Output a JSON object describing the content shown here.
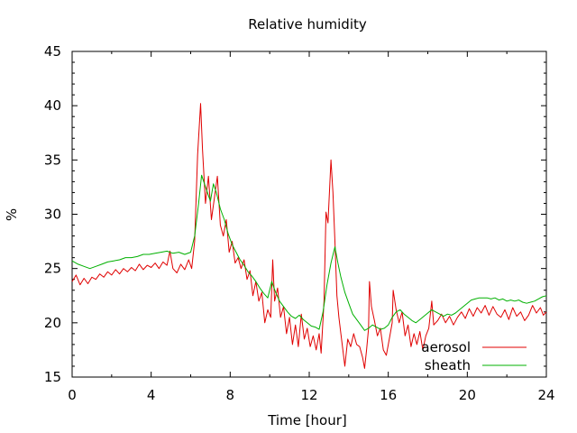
{
  "chart_data": {
    "type": "line",
    "title": "Relative humidity",
    "xlabel": "Time [hour]",
    "ylabel": "%",
    "xlim": [
      0,
      24
    ],
    "ylim": [
      15,
      45
    ],
    "xticks": [
      0,
      4,
      8,
      12,
      16,
      20,
      24
    ],
    "yticks": [
      15,
      20,
      25,
      30,
      35,
      40,
      45
    ],
    "grid": false,
    "legend_position": "bottom-right",
    "series": [
      {
        "name": "aerosol",
        "color": "#e00000",
        "points": [
          [
            0.0,
            23.8
          ],
          [
            0.2,
            24.4
          ],
          [
            0.4,
            23.5
          ],
          [
            0.6,
            24.1
          ],
          [
            0.8,
            23.6
          ],
          [
            1.0,
            24.2
          ],
          [
            1.2,
            24.0
          ],
          [
            1.4,
            24.5
          ],
          [
            1.6,
            24.2
          ],
          [
            1.8,
            24.7
          ],
          [
            2.0,
            24.4
          ],
          [
            2.2,
            24.9
          ],
          [
            2.4,
            24.5
          ],
          [
            2.6,
            25.0
          ],
          [
            2.8,
            24.7
          ],
          [
            3.0,
            25.1
          ],
          [
            3.2,
            24.8
          ],
          [
            3.4,
            25.4
          ],
          [
            3.6,
            24.9
          ],
          [
            3.8,
            25.3
          ],
          [
            4.0,
            25.1
          ],
          [
            4.2,
            25.5
          ],
          [
            4.4,
            25.0
          ],
          [
            4.6,
            25.6
          ],
          [
            4.8,
            25.3
          ],
          [
            4.95,
            26.6
          ],
          [
            5.1,
            25.0
          ],
          [
            5.3,
            24.6
          ],
          [
            5.5,
            25.4
          ],
          [
            5.7,
            24.9
          ],
          [
            5.9,
            25.8
          ],
          [
            6.05,
            25.0
          ],
          [
            6.2,
            27.5
          ],
          [
            6.35,
            35.5
          ],
          [
            6.5,
            40.2
          ],
          [
            6.6,
            36.0
          ],
          [
            6.75,
            31.0
          ],
          [
            6.9,
            33.5
          ],
          [
            7.05,
            29.5
          ],
          [
            7.2,
            31.5
          ],
          [
            7.35,
            33.5
          ],
          [
            7.5,
            29.0
          ],
          [
            7.65,
            28.0
          ],
          [
            7.8,
            29.5
          ],
          [
            7.95,
            26.5
          ],
          [
            8.1,
            27.5
          ],
          [
            8.25,
            25.5
          ],
          [
            8.4,
            26.0
          ],
          [
            8.55,
            25.0
          ],
          [
            8.7,
            25.8
          ],
          [
            8.85,
            24.0
          ],
          [
            9.0,
            24.8
          ],
          [
            9.15,
            22.5
          ],
          [
            9.3,
            23.8
          ],
          [
            9.45,
            22.0
          ],
          [
            9.6,
            22.8
          ],
          [
            9.75,
            20.0
          ],
          [
            9.9,
            21.2
          ],
          [
            10.05,
            20.5
          ],
          [
            10.15,
            25.8
          ],
          [
            10.25,
            22.0
          ],
          [
            10.4,
            23.2
          ],
          [
            10.55,
            20.5
          ],
          [
            10.7,
            21.5
          ],
          [
            10.85,
            19.0
          ],
          [
            11.0,
            20.5
          ],
          [
            11.15,
            18.0
          ],
          [
            11.3,
            19.8
          ],
          [
            11.45,
            17.8
          ],
          [
            11.6,
            20.8
          ],
          [
            11.75,
            18.5
          ],
          [
            11.9,
            19.5
          ],
          [
            12.05,
            17.8
          ],
          [
            12.2,
            18.8
          ],
          [
            12.35,
            17.5
          ],
          [
            12.5,
            19.0
          ],
          [
            12.6,
            17.2
          ],
          [
            12.75,
            22.0
          ],
          [
            12.85,
            30.2
          ],
          [
            12.95,
            29.2
          ],
          [
            13.1,
            35.0
          ],
          [
            13.2,
            32.0
          ],
          [
            13.3,
            27.5
          ],
          [
            13.4,
            22.5
          ],
          [
            13.5,
            20.5
          ],
          [
            13.6,
            19.0
          ],
          [
            13.7,
            17.5
          ],
          [
            13.8,
            16.0
          ],
          [
            13.95,
            18.5
          ],
          [
            14.1,
            17.8
          ],
          [
            14.25,
            19.0
          ],
          [
            14.4,
            18.0
          ],
          [
            14.55,
            17.8
          ],
          [
            14.7,
            16.8
          ],
          [
            14.8,
            15.8
          ],
          [
            14.9,
            17.5
          ],
          [
            15.0,
            19.5
          ],
          [
            15.05,
            23.8
          ],
          [
            15.15,
            21.5
          ],
          [
            15.3,
            20.2
          ],
          [
            15.45,
            18.8
          ],
          [
            15.6,
            19.5
          ],
          [
            15.75,
            17.5
          ],
          [
            15.9,
            17.0
          ],
          [
            16.05,
            18.5
          ],
          [
            16.2,
            20.0
          ],
          [
            16.25,
            23.0
          ],
          [
            16.4,
            21.2
          ],
          [
            16.55,
            20.0
          ],
          [
            16.7,
            21.0
          ],
          [
            16.85,
            18.8
          ],
          [
            17.0,
            19.8
          ],
          [
            17.15,
            17.8
          ],
          [
            17.3,
            19.0
          ],
          [
            17.45,
            18.0
          ],
          [
            17.6,
            19.2
          ],
          [
            17.75,
            17.5
          ],
          [
            17.9,
            18.8
          ],
          [
            18.05,
            19.5
          ],
          [
            18.2,
            22.0
          ],
          [
            18.3,
            19.8
          ],
          [
            18.5,
            20.2
          ],
          [
            18.7,
            20.8
          ],
          [
            18.9,
            20.0
          ],
          [
            19.1,
            20.6
          ],
          [
            19.3,
            19.8
          ],
          [
            19.5,
            20.5
          ],
          [
            19.7,
            21.0
          ],
          [
            19.9,
            20.4
          ],
          [
            20.1,
            21.3
          ],
          [
            20.3,
            20.6
          ],
          [
            20.5,
            21.4
          ],
          [
            20.7,
            20.9
          ],
          [
            20.9,
            21.6
          ],
          [
            21.1,
            20.7
          ],
          [
            21.3,
            21.5
          ],
          [
            21.5,
            20.8
          ],
          [
            21.7,
            20.5
          ],
          [
            21.9,
            21.2
          ],
          [
            22.1,
            20.3
          ],
          [
            22.3,
            21.4
          ],
          [
            22.5,
            20.6
          ],
          [
            22.7,
            21.0
          ],
          [
            22.9,
            20.2
          ],
          [
            23.1,
            20.7
          ],
          [
            23.3,
            21.6
          ],
          [
            23.5,
            20.9
          ],
          [
            23.7,
            21.4
          ],
          [
            23.85,
            20.7
          ],
          [
            24.0,
            21.0
          ]
        ]
      },
      {
        "name": "sheath",
        "color": "#00b000",
        "points": [
          [
            0.0,
            25.7
          ],
          [
            0.3,
            25.4
          ],
          [
            0.6,
            25.2
          ],
          [
            0.9,
            25.0
          ],
          [
            1.2,
            25.2
          ],
          [
            1.5,
            25.4
          ],
          [
            1.8,
            25.6
          ],
          [
            2.1,
            25.7
          ],
          [
            2.4,
            25.8
          ],
          [
            2.7,
            26.0
          ],
          [
            3.0,
            26.0
          ],
          [
            3.3,
            26.1
          ],
          [
            3.6,
            26.3
          ],
          [
            3.9,
            26.3
          ],
          [
            4.2,
            26.4
          ],
          [
            4.5,
            26.5
          ],
          [
            4.8,
            26.6
          ],
          [
            5.1,
            26.4
          ],
          [
            5.4,
            26.5
          ],
          [
            5.7,
            26.3
          ],
          [
            6.0,
            26.5
          ],
          [
            6.2,
            28.0
          ],
          [
            6.4,
            31.0
          ],
          [
            6.55,
            33.6
          ],
          [
            6.7,
            32.8
          ],
          [
            6.85,
            32.0
          ],
          [
            7.0,
            31.2
          ],
          [
            7.15,
            32.8
          ],
          [
            7.3,
            32.0
          ],
          [
            7.5,
            30.5
          ],
          [
            7.7,
            29.5
          ],
          [
            7.9,
            28.2
          ],
          [
            8.1,
            27.2
          ],
          [
            8.3,
            26.5
          ],
          [
            8.5,
            25.8
          ],
          [
            8.7,
            25.3
          ],
          [
            8.9,
            24.7
          ],
          [
            9.1,
            24.3
          ],
          [
            9.3,
            23.8
          ],
          [
            9.5,
            23.2
          ],
          [
            9.7,
            22.7
          ],
          [
            9.9,
            22.3
          ],
          [
            10.1,
            23.8
          ],
          [
            10.3,
            22.8
          ],
          [
            10.5,
            22.0
          ],
          [
            10.7,
            21.5
          ],
          [
            10.9,
            21.0
          ],
          [
            11.1,
            20.6
          ],
          [
            11.3,
            20.4
          ],
          [
            11.5,
            20.7
          ],
          [
            11.7,
            20.3
          ],
          [
            11.9,
            20.0
          ],
          [
            12.1,
            19.7
          ],
          [
            12.3,
            19.6
          ],
          [
            12.5,
            19.4
          ],
          [
            12.7,
            21.0
          ],
          [
            12.9,
            23.5
          ],
          [
            13.1,
            25.5
          ],
          [
            13.3,
            27.0
          ],
          [
            13.45,
            25.5
          ],
          [
            13.6,
            24.2
          ],
          [
            13.8,
            22.8
          ],
          [
            14.0,
            21.8
          ],
          [
            14.2,
            20.8
          ],
          [
            14.4,
            20.3
          ],
          [
            14.6,
            19.8
          ],
          [
            14.8,
            19.3
          ],
          [
            15.0,
            19.5
          ],
          [
            15.2,
            19.8
          ],
          [
            15.4,
            19.6
          ],
          [
            15.6,
            19.4
          ],
          [
            15.8,
            19.5
          ],
          [
            16.0,
            19.8
          ],
          [
            16.2,
            20.5
          ],
          [
            16.4,
            21.0
          ],
          [
            16.6,
            21.2
          ],
          [
            16.8,
            20.8
          ],
          [
            17.0,
            20.5
          ],
          [
            17.2,
            20.2
          ],
          [
            17.4,
            20.0
          ],
          [
            17.6,
            20.3
          ],
          [
            17.8,
            20.6
          ],
          [
            18.0,
            20.9
          ],
          [
            18.2,
            21.2
          ],
          [
            18.4,
            21.0
          ],
          [
            18.6,
            20.8
          ],
          [
            18.8,
            20.6
          ],
          [
            19.0,
            20.8
          ],
          [
            19.2,
            20.7
          ],
          [
            19.4,
            20.9
          ],
          [
            19.6,
            21.2
          ],
          [
            19.8,
            21.5
          ],
          [
            20.0,
            21.8
          ],
          [
            20.2,
            22.1
          ],
          [
            20.4,
            22.2
          ],
          [
            20.6,
            22.3
          ],
          [
            20.8,
            22.3
          ],
          [
            21.0,
            22.3
          ],
          [
            21.2,
            22.2
          ],
          [
            21.4,
            22.3
          ],
          [
            21.6,
            22.1
          ],
          [
            21.8,
            22.2
          ],
          [
            22.0,
            22.0
          ],
          [
            22.2,
            22.1
          ],
          [
            22.4,
            22.0
          ],
          [
            22.6,
            22.1
          ],
          [
            22.8,
            21.9
          ],
          [
            23.0,
            21.8
          ],
          [
            23.2,
            21.9
          ],
          [
            23.4,
            22.0
          ],
          [
            23.6,
            22.2
          ],
          [
            23.8,
            22.4
          ],
          [
            24.0,
            22.5
          ]
        ]
      }
    ]
  }
}
